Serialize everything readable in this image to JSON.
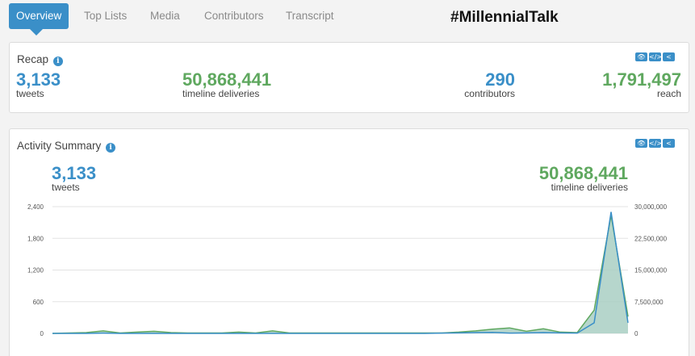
{
  "nav": {
    "tabs": [
      {
        "label": "Overview",
        "active": true
      },
      {
        "label": "Top Lists",
        "active": false
      },
      {
        "label": "Media",
        "active": false
      },
      {
        "label": "Contributors",
        "active": false
      },
      {
        "label": "Transcript",
        "active": false
      }
    ],
    "hashtag": "#MillennialTalk"
  },
  "recap": {
    "title": "Recap",
    "tweets": {
      "value": "3,133",
      "label": "tweets"
    },
    "deliveries": {
      "value": "50,868,441",
      "label": "timeline deliveries"
    },
    "contributors": {
      "value": "290",
      "label": "contributors"
    },
    "reach": {
      "value": "1,791,497",
      "label": "reach"
    }
  },
  "activity": {
    "title": "Activity Summary",
    "tweets": {
      "value": "3,133",
      "label": "tweets"
    },
    "deliveries": {
      "value": "50,868,441",
      "label": "timeline deliveries"
    }
  },
  "icons": {
    "info": "i",
    "eye": "👁",
    "code": "</>",
    "share": "<"
  },
  "colors": {
    "blue": "#3a8fc8",
    "green": "#5fa85f",
    "area": "#a9cfc3"
  },
  "chart_data": {
    "type": "line",
    "x": [
      0,
      1,
      2,
      3,
      4,
      5,
      6,
      7,
      8,
      9,
      10,
      11,
      12,
      13,
      14,
      15,
      16,
      17,
      18,
      19,
      20,
      21,
      22,
      23,
      24,
      25,
      26,
      27,
      28,
      29,
      30,
      31,
      32,
      33,
      34
    ],
    "series": [
      {
        "name": "tweets",
        "axis": "left",
        "color": "#3a8fc8",
        "values": [
          0,
          0,
          0,
          5,
          0,
          0,
          0,
          0,
          0,
          0,
          0,
          0,
          0,
          0,
          0,
          0,
          0,
          0,
          0,
          0,
          0,
          0,
          0,
          5,
          10,
          15,
          20,
          5,
          10,
          15,
          10,
          5,
          200,
          2300,
          200
        ]
      },
      {
        "name": "timeline deliveries",
        "axis": "right",
        "color": "#5fa85f",
        "values": [
          0,
          100000,
          200000,
          600000,
          100000,
          300000,
          500000,
          200000,
          100000,
          100000,
          100000,
          300000,
          100000,
          600000,
          100000,
          100000,
          100000,
          100000,
          100000,
          100000,
          100000,
          100000,
          100000,
          100000,
          300000,
          600000,
          1000000,
          1300000,
          500000,
          1100000,
          300000,
          200000,
          5500000,
          28000000,
          4000000
        ]
      }
    ],
    "yticks_left": [
      "2,400",
      "1,800",
      "1,200",
      "600",
      "0"
    ],
    "yticks_right": [
      "30,000,000",
      "22,500,000",
      "15,000,000",
      "7,500,000",
      "0"
    ],
    "ylim_left": [
      0,
      2400
    ],
    "ylim_right": [
      0,
      30000000
    ],
    "grid": true
  }
}
